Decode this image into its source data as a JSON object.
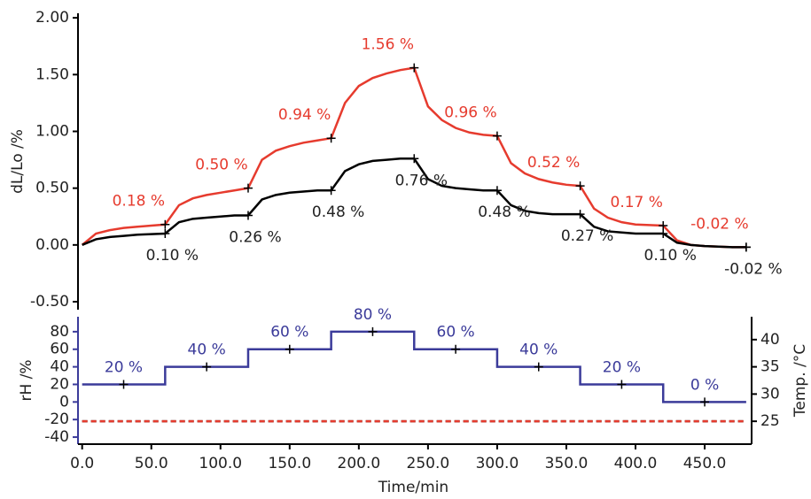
{
  "chart_data": [
    {
      "type": "line",
      "ylabel": "dL/Lo /%",
      "xlim": [
        -3,
        482
      ],
      "ylim": [
        -0.57,
        2.04
      ],
      "yticks": [
        {
          "value": -0.5,
          "label": "-0.50"
        },
        {
          "value": 0,
          "label": "0.00"
        },
        {
          "value": 0.5,
          "label": "0.50"
        },
        {
          "value": 1,
          "label": "1.00"
        },
        {
          "value": 1.5,
          "label": "1.50"
        },
        {
          "value": 2,
          "label": "2.00"
        }
      ],
      "x": [
        0,
        10,
        20,
        30,
        40,
        50,
        60,
        70,
        80,
        90,
        100,
        110,
        120,
        130,
        140,
        150,
        160,
        170,
        180,
        190,
        200,
        210,
        220,
        230,
        240,
        250,
        260,
        270,
        280,
        290,
        300,
        310,
        320,
        330,
        340,
        350,
        360,
        370,
        380,
        390,
        400,
        410,
        420,
        430,
        440,
        450,
        460,
        470,
        480
      ],
      "series": [
        {
          "color": "#e63b2e",
          "values": [
            0,
            0.1,
            0.13,
            0.15,
            0.16,
            0.17,
            0.18,
            0.35,
            0.41,
            0.44,
            0.46,
            0.48,
            0.5,
            0.75,
            0.83,
            0.87,
            0.9,
            0.92,
            0.94,
            1.25,
            1.4,
            1.47,
            1.51,
            1.54,
            1.56,
            1.22,
            1.1,
            1.03,
            0.99,
            0.97,
            0.96,
            0.72,
            0.63,
            0.58,
            0.55,
            0.53,
            0.52,
            0.32,
            0.24,
            0.2,
            0.18,
            0.175,
            0.17,
            0.04,
            0,
            -0.01,
            -0.015,
            -0.02,
            -0.02
          ],
          "annotations": [
            {
              "x": 60,
              "value": 0.18,
              "label": "0.18 %"
            },
            {
              "x": 120,
              "value": 0.5,
              "label": "0.50 %"
            },
            {
              "x": 180,
              "value": 0.94,
              "label": "0.94 %"
            },
            {
              "x": 240,
              "value": 1.56,
              "label": "1.56 %"
            },
            {
              "x": 300,
              "value": 0.96,
              "label": "0.96 %"
            },
            {
              "x": 360,
              "value": 0.52,
              "label": "0.52 %"
            },
            {
              "x": 420,
              "value": 0.17,
              "label": "0.17 %"
            },
            {
              "x": 480,
              "value": -0.02,
              "label": "-0.02 %"
            }
          ]
        },
        {
          "color": "#000000",
          "values": [
            0,
            0.05,
            0.07,
            0.08,
            0.09,
            0.095,
            0.1,
            0.2,
            0.23,
            0.24,
            0.25,
            0.26,
            0.26,
            0.4,
            0.44,
            0.46,
            0.47,
            0.48,
            0.48,
            0.65,
            0.71,
            0.74,
            0.75,
            0.76,
            0.76,
            0.58,
            0.52,
            0.5,
            0.49,
            0.48,
            0.48,
            0.35,
            0.3,
            0.28,
            0.27,
            0.27,
            0.27,
            0.16,
            0.12,
            0.11,
            0.1,
            0.1,
            0.1,
            0.02,
            0,
            -0.01,
            -0.015,
            -0.02,
            -0.02
          ],
          "annotations": [
            {
              "x": 60,
              "value": 0.1,
              "label": "0.10 %"
            },
            {
              "x": 120,
              "value": 0.26,
              "label": "0.26 %"
            },
            {
              "x": 180,
              "value": 0.48,
              "label": "0.48 %"
            },
            {
              "x": 240,
              "value": 0.76,
              "label": "0.76 %"
            },
            {
              "x": 300,
              "value": 0.48,
              "label": "0.48 %"
            },
            {
              "x": 360,
              "value": 0.27,
              "label": "0.27 %"
            },
            {
              "x": 420,
              "value": 0.1,
              "label": "0.10 %"
            },
            {
              "x": 480,
              "value": -0.02,
              "label": "-0.02 %"
            }
          ]
        }
      ]
    },
    {
      "type": "line",
      "xlabel": "Time/min",
      "ylabel": "rH /%",
      "y2label": "Temp. /°C",
      "xlim": [
        -3,
        482
      ],
      "ylim": [
        -48,
        97
      ],
      "y2lim": [
        20.8,
        44.2
      ],
      "xticks": [
        {
          "value": 0,
          "label": "0.0"
        },
        {
          "value": 50,
          "label": "50.0"
        },
        {
          "value": 100,
          "label": "100.0"
        },
        {
          "value": 150,
          "label": "150.0"
        },
        {
          "value": 200,
          "label": "200.0"
        },
        {
          "value": 250,
          "label": "250.0"
        },
        {
          "value": 300,
          "label": "300.0"
        },
        {
          "value": 350,
          "label": "350.0"
        },
        {
          "value": 400,
          "label": "400.0"
        },
        {
          "value": 450,
          "label": "450.0"
        }
      ],
      "yticks": [
        -40,
        -20,
        0,
        20,
        40,
        60,
        80
      ],
      "y2ticks": [
        25,
        30,
        35,
        40
      ],
      "series": [
        {
          "color": "#3b3b9a",
          "x": [
            0,
            60,
            60,
            120,
            120,
            180,
            180,
            240,
            240,
            300,
            300,
            360,
            360,
            420,
            420,
            480
          ],
          "values": [
            20,
            20,
            40,
            40,
            60,
            60,
            80,
            80,
            60,
            60,
            40,
            40,
            20,
            20,
            0,
            0
          ],
          "annotations": [
            {
              "x": 30,
              "value": 20,
              "label": "20 %"
            },
            {
              "x": 90,
              "value": 40,
              "label": "40 %"
            },
            {
              "x": 150,
              "value": 60,
              "label": "60 %"
            },
            {
              "x": 210,
              "value": 80,
              "label": "80 %"
            },
            {
              "x": 270,
              "value": 60,
              "label": "60 %"
            },
            {
              "x": 330,
              "value": 40,
              "label": "40 %"
            },
            {
              "x": 390,
              "value": 20,
              "label": "20 %"
            },
            {
              "x": 450,
              "value": 0,
              "label": "0 %"
            }
          ]
        },
        {
          "color": "#000000",
          "axis": "y2",
          "dashed": true,
          "x": [
            0,
            480
          ],
          "values": [
            25,
            25
          ]
        },
        {
          "color": "#e63b2e",
          "axis": "y2",
          "dashed": true,
          "x": [
            0,
            480
          ],
          "values": [
            25,
            25
          ]
        }
      ]
    }
  ]
}
